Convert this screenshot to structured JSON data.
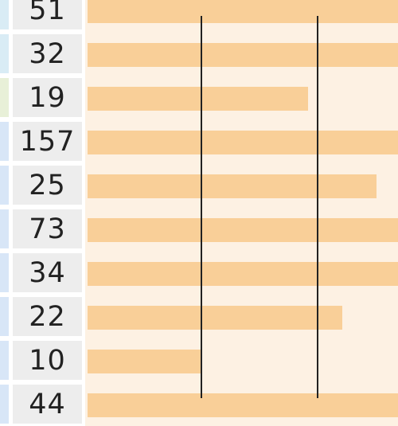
{
  "rows": [
    {
      "value": "51",
      "bar_fraction": 1.0
    },
    {
      "value": "32",
      "bar_fraction": 1.0
    },
    {
      "value": "19",
      "bar_fraction": 0.71
    },
    {
      "value": "157",
      "bar_fraction": 1.0
    },
    {
      "value": "25",
      "bar_fraction": 0.93
    },
    {
      "value": "73",
      "bar_fraction": 1.0
    },
    {
      "value": "34",
      "bar_fraction": 1.0
    },
    {
      "value": "22",
      "bar_fraction": 0.82
    },
    {
      "value": "10",
      "bar_fraction": 0.37
    },
    {
      "value": "44",
      "bar_fraction": 1.0
    }
  ],
  "colors": {
    "bar": "#f9cf98",
    "bar_cell_bg": "#fdf1e3",
    "number_cell_bg": "#ededed",
    "left_strips": [
      "#d9ecf5",
      "#d9ecf5",
      "#e8f0d8",
      "#d8e6f7",
      "#d8e6f7",
      "#d8e6f7",
      "#d8e6f7",
      "#d8e6f7",
      "#d8e6f7",
      "#d8e6f7"
    ],
    "grid_line": "#222222"
  }
}
